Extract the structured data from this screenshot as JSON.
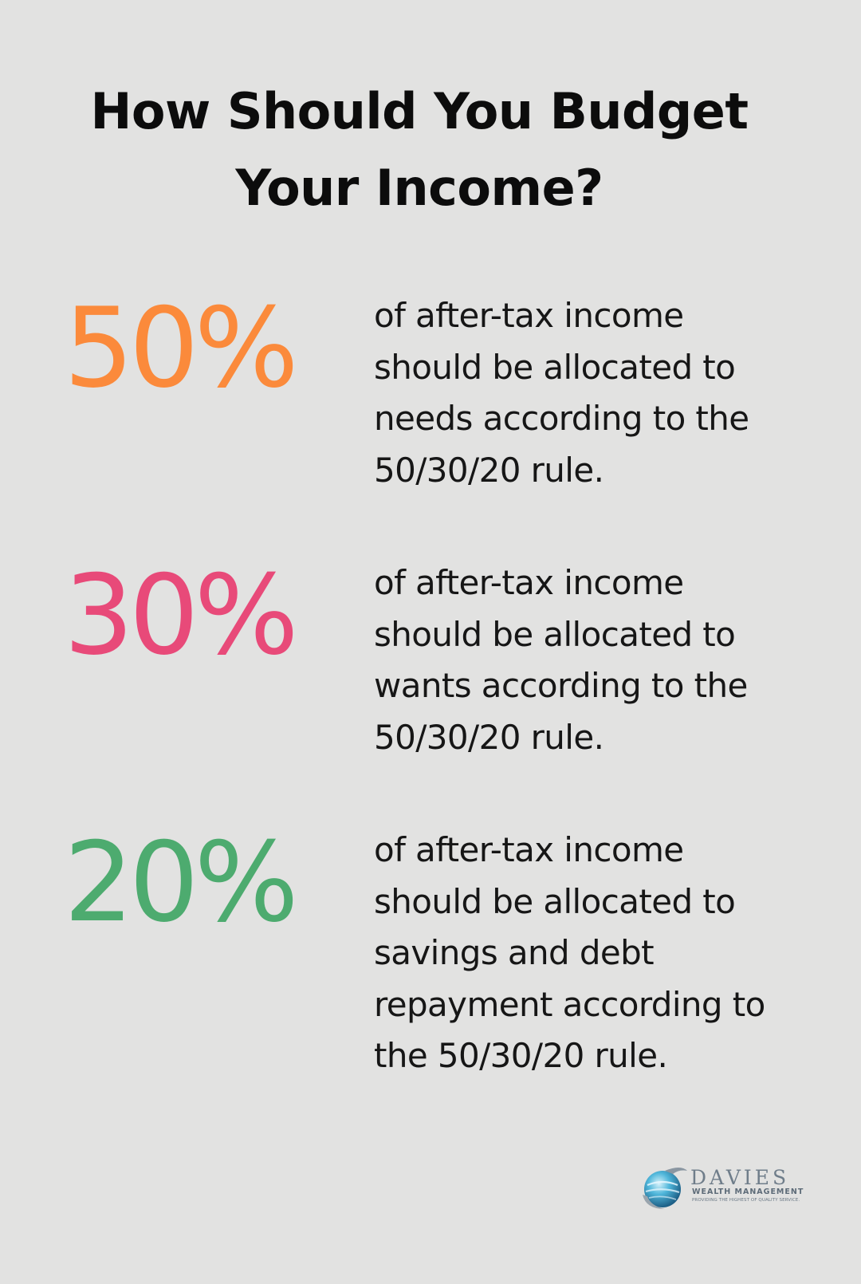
{
  "title": {
    "line1": "How Should You Budget",
    "line2": "Your Income?"
  },
  "stats": [
    {
      "value": "50%",
      "color": "#fb8a3b",
      "lines": [
        "of after-tax income",
        "should be allocated to",
        "needs according to the",
        "50/30/20 rule."
      ]
    },
    {
      "value": "30%",
      "color": "#e84a79",
      "lines": [
        "of after-tax income",
        "should be allocated to",
        "wants according to the",
        "50/30/20 rule."
      ]
    },
    {
      "value": "20%",
      "color": "#4dab6f",
      "lines": [
        "of after-tax income",
        "should be allocated to",
        "savings and debt",
        "repayment according to",
        "the 50/30/20 rule."
      ]
    }
  ],
  "logo": {
    "name": "DAVIES",
    "subtitle": "WEALTH MANAGEMENT",
    "tagline": "PROVIDING THE HIGHEST OF QUALITY SERVICE.",
    "icon": "globe-swoosh-icon"
  }
}
